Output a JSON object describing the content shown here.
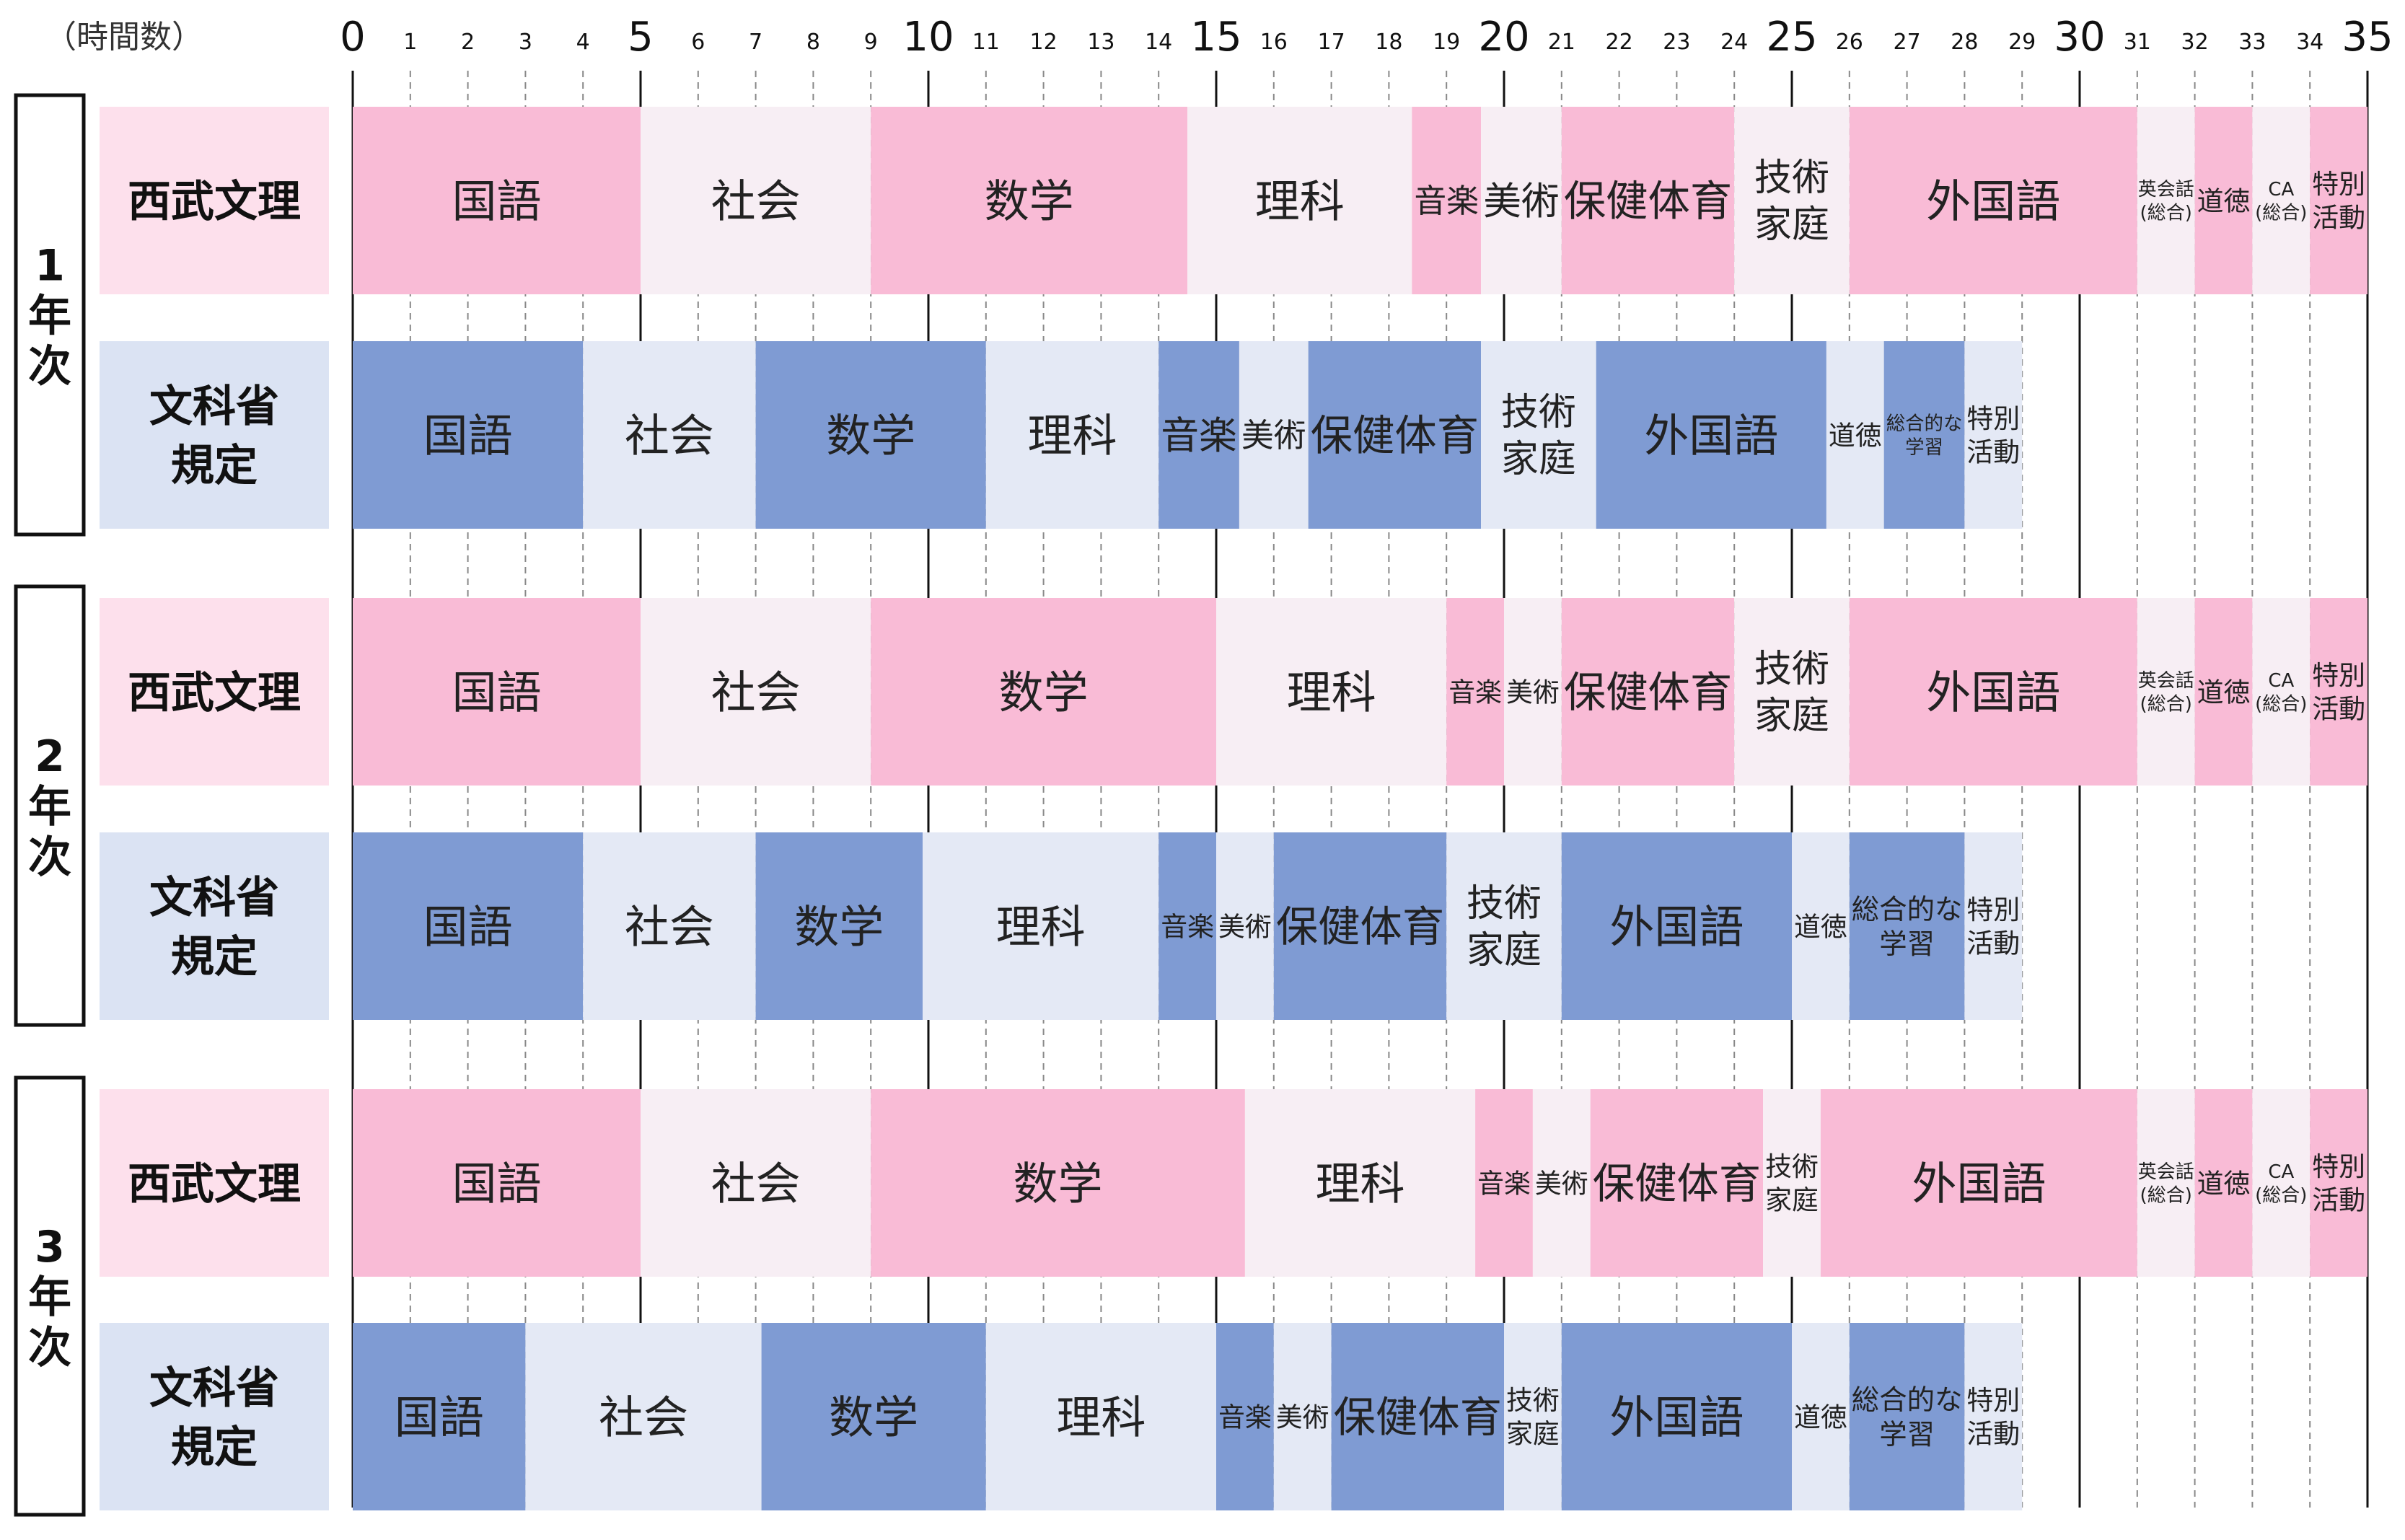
{
  "chart_data": {
    "type": "bar",
    "orientation": "horizontal-stacked",
    "axis_title": "（時間数）",
    "xlim": [
      0,
      35
    ],
    "major_ticks": [
      0,
      5,
      10,
      15,
      20,
      25,
      30,
      35
    ],
    "minor_ticks": [
      1,
      2,
      3,
      4,
      6,
      7,
      8,
      9,
      11,
      12,
      13,
      14,
      16,
      17,
      18,
      19,
      21,
      22,
      23,
      24,
      26,
      27,
      28,
      29,
      31,
      32,
      33,
      34
    ],
    "grid": "vertical: solid at multiples of 5, dashed at each unit",
    "colors": {
      "seibu_dark": "#f9bbd6",
      "seibu_light": "#f7eef4",
      "seibu_label_bg": "#fde0ec",
      "monka_dark": "#7f9bd3",
      "monka_light": "#e4e9f5",
      "monka_label_bg": "#dbe3f3"
    },
    "groups": [
      {
        "year": [
          "1",
          "年",
          "次"
        ],
        "rows": [
          {
            "label": [
              "西武文理"
            ],
            "scheme": "seibu",
            "segments": [
              {
                "label": [
                  "国語"
                ],
                "value": 5
              },
              {
                "label": [
                  "社会"
                ],
                "value": 4
              },
              {
                "label": [
                  "数学"
                ],
                "value": 5.5
              },
              {
                "label": [
                  "理科"
                ],
                "value": 3.9
              },
              {
                "label": [
                  "音楽"
                ],
                "value": 1.2
              },
              {
                "label": [
                  "美術"
                ],
                "value": 1.4
              },
              {
                "label": [
                  "保健体育"
                ],
                "value": 3
              },
              {
                "label": [
                  "技術",
                  "家庭"
                ],
                "value": 2
              },
              {
                "label": [
                  "外国語"
                ],
                "value": 5
              },
              {
                "label": [
                  "英会話",
                  "(総合)"
                ],
                "value": 1
              },
              {
                "label": [
                  "道徳"
                ],
                "value": 1
              },
              {
                "label": [
                  "CA",
                  "(総合)"
                ],
                "value": 1
              },
              {
                "label": [
                  "特別",
                  "活動"
                ],
                "value": 1
              }
            ]
          },
          {
            "label": [
              "文科省",
              "規定"
            ],
            "scheme": "monka",
            "segments": [
              {
                "label": [
                  "国語"
                ],
                "value": 4
              },
              {
                "label": [
                  "社会"
                ],
                "value": 3
              },
              {
                "label": [
                  "数学"
                ],
                "value": 4
              },
              {
                "label": [
                  "理科"
                ],
                "value": 3
              },
              {
                "label": [
                  "音楽"
                ],
                "value": 1.4
              },
              {
                "label": [
                  "美術"
                ],
                "value": 1.2
              },
              {
                "label": [
                  "保健体育"
                ],
                "value": 3
              },
              {
                "label": [
                  "技術",
                  "家庭"
                ],
                "value": 2
              },
              {
                "label": [
                  "外国語"
                ],
                "value": 4
              },
              {
                "label": [
                  "道徳"
                ],
                "value": 1
              },
              {
                "label": [
                  "総合的な",
                  "学習"
                ],
                "value": 1.4
              },
              {
                "label": [
                  "特別",
                  "活動"
                ],
                "value": 1
              }
            ]
          }
        ]
      },
      {
        "year": [
          "2",
          "年",
          "次"
        ],
        "rows": [
          {
            "label": [
              "西武文理"
            ],
            "scheme": "seibu",
            "segments": [
              {
                "label": [
                  "国語"
                ],
                "value": 5
              },
              {
                "label": [
                  "社会"
                ],
                "value": 4
              },
              {
                "label": [
                  "数学"
                ],
                "value": 6
              },
              {
                "label": [
                  "理科"
                ],
                "value": 4
              },
              {
                "label": [
                  "音楽"
                ],
                "value": 1
              },
              {
                "label": [
                  "美術"
                ],
                "value": 1
              },
              {
                "label": [
                  "保健体育"
                ],
                "value": 3
              },
              {
                "label": [
                  "技術",
                  "家庭"
                ],
                "value": 2
              },
              {
                "label": [
                  "外国語"
                ],
                "value": 5
              },
              {
                "label": [
                  "英会話",
                  "(総合)"
                ],
                "value": 1
              },
              {
                "label": [
                  "道徳"
                ],
                "value": 1
              },
              {
                "label": [
                  "CA",
                  "(総合)"
                ],
                "value": 1
              },
              {
                "label": [
                  "特別",
                  "活動"
                ],
                "value": 1
              }
            ]
          },
          {
            "label": [
              "文科省",
              "規定"
            ],
            "scheme": "monka",
            "segments": [
              {
                "label": [
                  "国語"
                ],
                "value": 4
              },
              {
                "label": [
                  "社会"
                ],
                "value": 3
              },
              {
                "label": [
                  "数学"
                ],
                "value": 2.9
              },
              {
                "label": [
                  "理科"
                ],
                "value": 4.1
              },
              {
                "label": [
                  "音楽"
                ],
                "value": 1
              },
              {
                "label": [
                  "美術"
                ],
                "value": 1
              },
              {
                "label": [
                  "保健体育"
                ],
                "value": 3
              },
              {
                "label": [
                  "技術",
                  "家庭"
                ],
                "value": 2
              },
              {
                "label": [
                  "外国語"
                ],
                "value": 4
              },
              {
                "label": [
                  "道徳"
                ],
                "value": 1
              },
              {
                "label": [
                  "総合的な",
                  "学習"
                ],
                "value": 2
              },
              {
                "label": [
                  "特別",
                  "活動"
                ],
                "value": 1
              }
            ]
          }
        ]
      },
      {
        "year": [
          "3",
          "年",
          "次"
        ],
        "rows": [
          {
            "label": [
              "西武文理"
            ],
            "scheme": "seibu",
            "segments": [
              {
                "label": [
                  "国語"
                ],
                "value": 5
              },
              {
                "label": [
                  "社会"
                ],
                "value": 4
              },
              {
                "label": [
                  "数学"
                ],
                "value": 6.5
              },
              {
                "label": [
                  "理科"
                ],
                "value": 4
              },
              {
                "label": [
                  "音楽"
                ],
                "value": 1
              },
              {
                "label": [
                  "美術"
                ],
                "value": 1
              },
              {
                "label": [
                  "保健体育"
                ],
                "value": 3
              },
              {
                "label": [
                  "技術",
                  "家庭"
                ],
                "value": 1
              },
              {
                "label": [
                  "外国語"
                ],
                "value": 5.5
              },
              {
                "label": [
                  "英会話",
                  "(総合)"
                ],
                "value": 1
              },
              {
                "label": [
                  "道徳"
                ],
                "value": 1
              },
              {
                "label": [
                  "CA",
                  "(総合)"
                ],
                "value": 1
              },
              {
                "label": [
                  "特別",
                  "活動"
                ],
                "value": 1
              }
            ]
          },
          {
            "label": [
              "文科省",
              "規定"
            ],
            "scheme": "monka",
            "segments": [
              {
                "label": [
                  "国語"
                ],
                "value": 3
              },
              {
                "label": [
                  "社会"
                ],
                "value": 4.1
              },
              {
                "label": [
                  "数学"
                ],
                "value": 3.9
              },
              {
                "label": [
                  "理科"
                ],
                "value": 4
              },
              {
                "label": [
                  "音楽"
                ],
                "value": 1
              },
              {
                "label": [
                  "美術"
                ],
                "value": 1
              },
              {
                "label": [
                  "保健体育"
                ],
                "value": 3
              },
              {
                "label": [
                  "技術",
                  "家庭"
                ],
                "value": 1
              },
              {
                "label": [
                  "外国語"
                ],
                "value": 4
              },
              {
                "label": [
                  "道徳"
                ],
                "value": 1
              },
              {
                "label": [
                  "総合的な",
                  "学習"
                ],
                "value": 2
              },
              {
                "label": [
                  "特別",
                  "活動"
                ],
                "value": 1
              }
            ]
          }
        ]
      }
    ]
  }
}
